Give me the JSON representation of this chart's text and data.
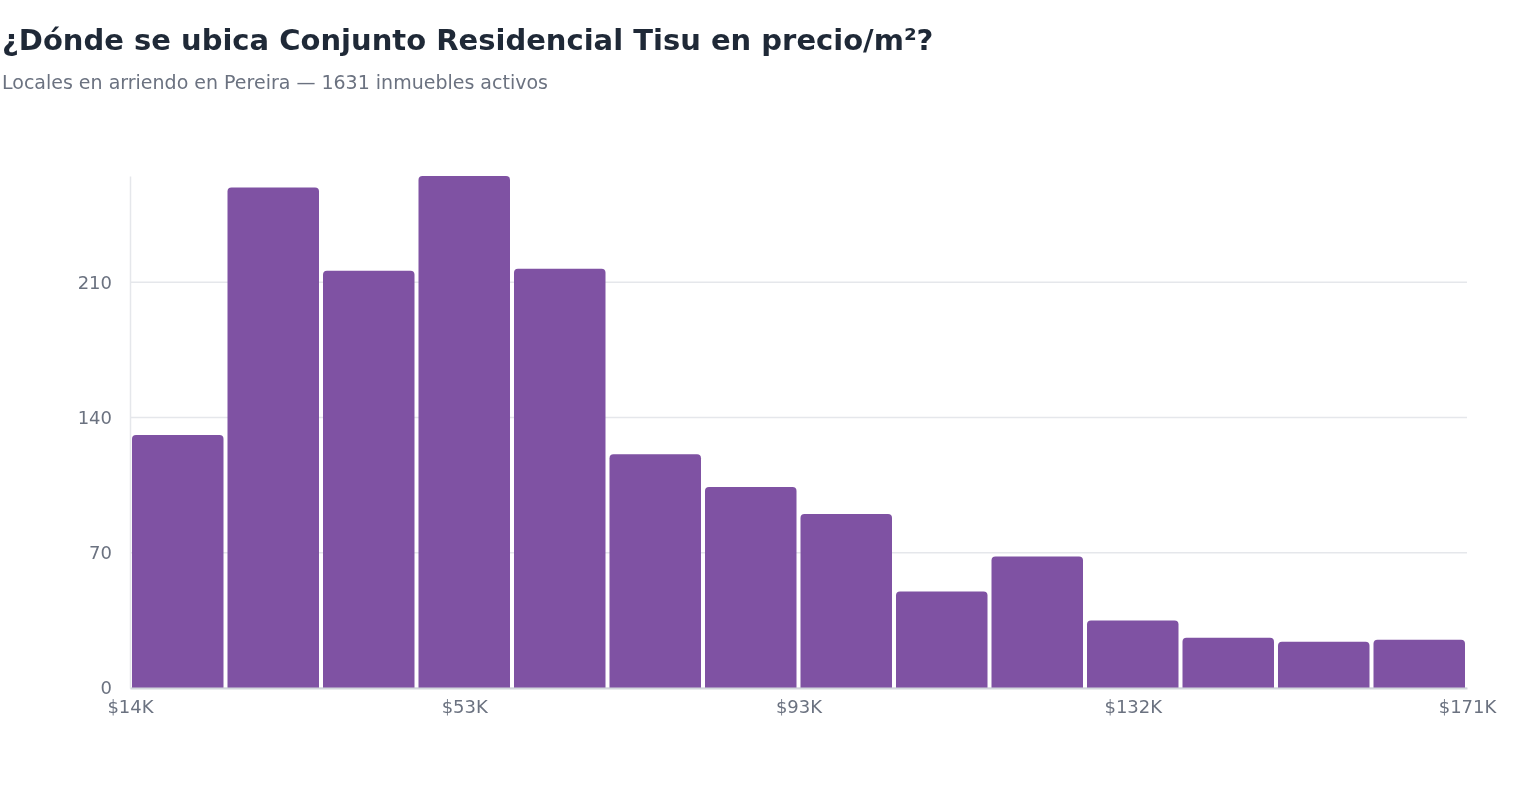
{
  "chart_data": {
    "type": "histogram",
    "title": "¿Dónde se ubica Conjunto Residencial Tisu en precio/m²?",
    "subtitle": "Locales en arriendo en Pereira — 1631 inmuebles activos",
    "bins": [
      14000,
      25214,
      36429,
      47643,
      58857,
      70071,
      81286,
      92500,
      103714,
      114929,
      126143,
      137357,
      148571,
      159786,
      171000
    ],
    "values": [
      131,
      259,
      216,
      265,
      217,
      121,
      104,
      90,
      50,
      68,
      35,
      26,
      24,
      25
    ],
    "color": "#7f52a3",
    "xlim": [
      14000,
      171000
    ],
    "xticks": [
      {
        "value": 14000,
        "label": "$14K"
      },
      {
        "value": 53250,
        "label": "$53K"
      },
      {
        "value": 92500,
        "label": "$93K"
      },
      {
        "value": 131750,
        "label": "$132K"
      },
      {
        "value": 171000,
        "label": "$171K"
      }
    ],
    "ylim": [
      0,
      265
    ],
    "yticks": [
      0,
      70,
      140,
      210
    ],
    "grid": "y"
  }
}
